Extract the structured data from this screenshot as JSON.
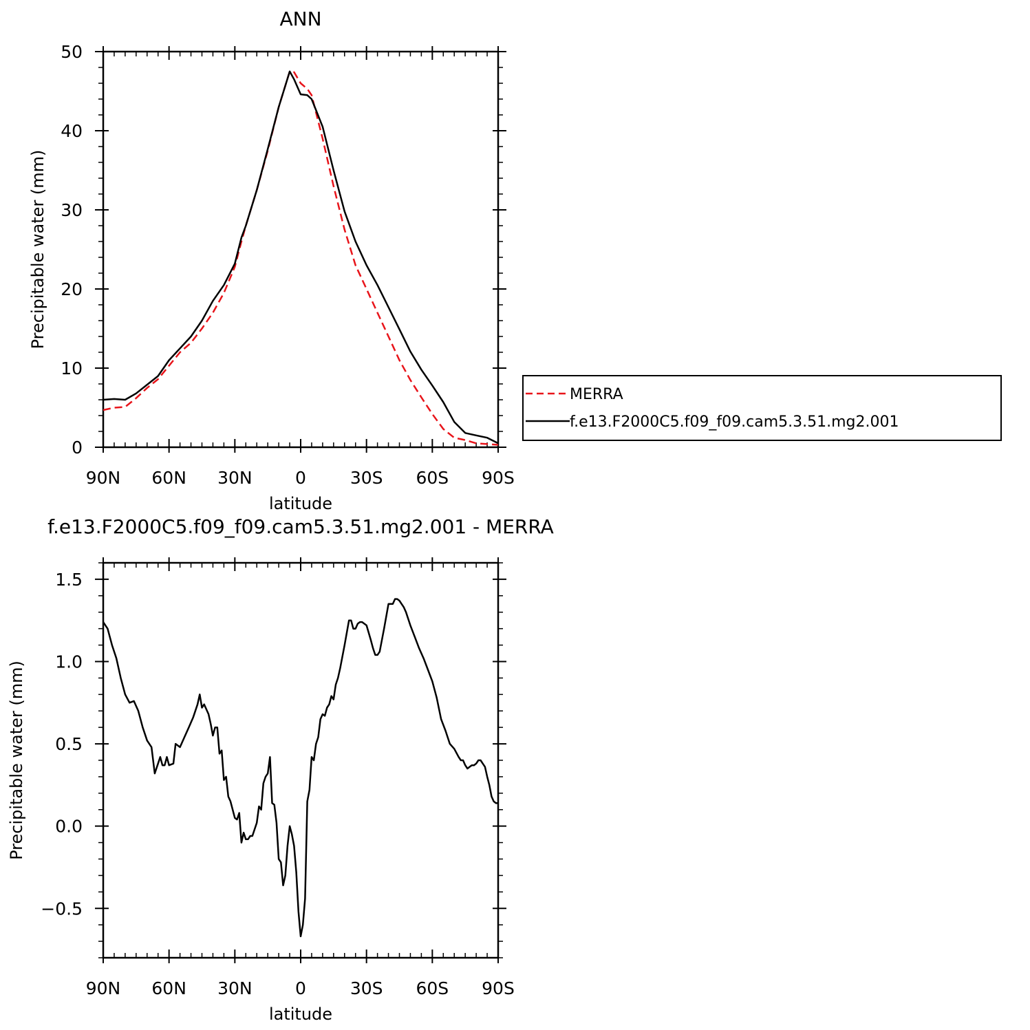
{
  "figure": {
    "top_title": "ANN",
    "bottom_title": "f.e13.F2000C5.f09_f09.cam5.3.51.mg2.001 - MERRA"
  },
  "colors": {
    "merra": "#e8141a",
    "model": "#000000",
    "frame": "#000000"
  },
  "legend": {
    "merra_label": "MERRA",
    "model_label": "f.e13.F2000C5.f09_f09.cam5.3.51.mg2.001"
  },
  "chart_data": [
    {
      "type": "line",
      "title": "ANN",
      "xlabel": "latitude",
      "ylabel": "Precipitable water (mm)",
      "xlim": [
        90,
        -90
      ],
      "ylim": [
        0,
        50
      ],
      "xticks": [
        90,
        60,
        30,
        0,
        -30,
        -60,
        -90
      ],
      "xtick_labels": [
        "90N",
        "60N",
        "30N",
        "0",
        "30S",
        "60S",
        "90S"
      ],
      "yticks": [
        0,
        10,
        20,
        30,
        40,
        50
      ],
      "ytick_labels": [
        "0",
        "10",
        "20",
        "30",
        "40",
        "50"
      ],
      "legend_position": "right",
      "series": [
        {
          "name": "MERRA",
          "style": "dashed",
          "color": "#e8141a",
          "x": [
            90,
            85,
            80,
            75,
            70,
            65,
            60,
            55,
            50,
            45,
            40,
            35,
            30,
            27,
            25,
            20,
            15,
            10,
            5,
            3,
            0,
            -3,
            -5,
            -10,
            -15,
            -20,
            -25,
            -30,
            -35,
            -40,
            -45,
            -50,
            -55,
            -60,
            -65,
            -70,
            -75,
            -80,
            -85,
            -90
          ],
          "y": [
            4.7,
            5.0,
            5.1,
            6.2,
            7.5,
            8.6,
            10.3,
            12.0,
            13.2,
            15.0,
            17.0,
            19.5,
            22.8,
            26.0,
            28.0,
            32.5,
            37.5,
            43.0,
            47.5,
            47.4,
            46.0,
            45.3,
            44.5,
            39.0,
            33.0,
            27.5,
            23.0,
            20.0,
            17.0,
            14.0,
            11.0,
            8.5,
            6.3,
            4.2,
            2.3,
            1.2,
            0.9,
            0.5,
            0.4,
            0.3
          ]
        },
        {
          "name": "f.e13.F2000C5.f09_f09.cam5.3.51.mg2.001",
          "style": "solid",
          "color": "#000000",
          "x": [
            90,
            85,
            80,
            75,
            70,
            65,
            60,
            55,
            50,
            45,
            40,
            35,
            30,
            27,
            25,
            20,
            15,
            10,
            5,
            3,
            0,
            -3,
            -5,
            -10,
            -15,
            -20,
            -25,
            -30,
            -35,
            -40,
            -45,
            -50,
            -55,
            -60,
            -65,
            -70,
            -75,
            -80,
            -85,
            -90
          ],
          "y": [
            6.0,
            6.1,
            6.0,
            6.8,
            7.9,
            9.0,
            11.0,
            12.5,
            14.0,
            16.0,
            18.5,
            20.5,
            23.2,
            26.5,
            28.0,
            32.5,
            37.7,
            43.0,
            47.5,
            46.5,
            44.6,
            44.5,
            44.0,
            40.5,
            35.0,
            29.8,
            26.0,
            23.0,
            20.5,
            17.7,
            14.9,
            12.1,
            9.8,
            7.8,
            5.7,
            3.2,
            1.8,
            1.5,
            1.2,
            0.5
          ]
        }
      ]
    },
    {
      "type": "line",
      "title": "f.e13.F2000C5.f09_f09.cam5.3.51.mg2.001 - MERRA",
      "xlabel": "latitude",
      "ylabel": "Precipitable water (mm)",
      "xlim": [
        90,
        -90
      ],
      "ylim": [
        -0.8,
        1.6
      ],
      "xticks": [
        90,
        60,
        30,
        0,
        -30,
        -60,
        -90
      ],
      "xtick_labels": [
        "90N",
        "60N",
        "30N",
        "0",
        "30S",
        "60S",
        "90S"
      ],
      "yticks": [
        -0.5,
        0.0,
        0.5,
        1.0,
        1.5
      ],
      "ytick_labels": [
        "−0.5",
        "0.0",
        "0.5",
        "1.0",
        "1.5"
      ],
      "series": [
        {
          "style": "solid",
          "color": "#000000",
          "x": [
            90,
            88,
            86,
            84,
            82,
            80,
            78,
            76,
            74,
            72,
            70,
            68,
            66.5,
            65,
            64,
            63,
            62,
            61,
            60,
            58,
            57,
            55,
            53,
            51,
            49,
            47,
            46,
            45,
            44,
            42,
            41,
            40,
            39,
            38,
            37,
            36,
            35,
            34,
            33,
            32,
            30,
            29,
            28,
            27,
            26,
            25,
            24,
            23,
            22,
            20,
            19,
            18,
            17,
            16,
            15,
            14,
            13,
            12,
            11,
            10,
            9,
            8,
            7,
            6,
            5,
            4,
            3,
            2,
            1,
            0,
            -1,
            -2,
            -3,
            -4,
            -5,
            -6,
            -7,
            -8,
            -9,
            -10,
            -11,
            -12,
            -13,
            -14,
            -15,
            -16,
            -17,
            -18,
            -20,
            -22,
            -23,
            -24,
            -25,
            -26,
            -27,
            -28,
            -30,
            -32,
            -33,
            -34,
            -35,
            -36,
            -38,
            -40,
            -42,
            -43,
            -44,
            -45,
            -46,
            -47,
            -48,
            -50,
            -52,
            -54,
            -56,
            -58,
            -60,
            -62,
            -64,
            -66,
            -68,
            -70,
            -72,
            -73,
            -74,
            -75,
            -76,
            -77,
            -78,
            -79,
            -80,
            -81,
            -82,
            -83,
            -84,
            -85,
            -86,
            -87,
            -88,
            -89,
            -90
          ],
          "y": [
            1.24,
            1.2,
            1.1,
            1.02,
            0.9,
            0.8,
            0.75,
            0.76,
            0.7,
            0.6,
            0.52,
            0.48,
            0.32,
            0.38,
            0.42,
            0.37,
            0.37,
            0.42,
            0.37,
            0.38,
            0.5,
            0.48,
            0.54,
            0.6,
            0.66,
            0.74,
            0.8,
            0.72,
            0.74,
            0.68,
            0.62,
            0.55,
            0.6,
            0.6,
            0.44,
            0.46,
            0.28,
            0.3,
            0.18,
            0.15,
            0.05,
            0.04,
            0.08,
            -0.1,
            -0.04,
            -0.08,
            -0.08,
            -0.06,
            -0.06,
            0.02,
            0.12,
            0.1,
            0.26,
            0.3,
            0.32,
            0.42,
            0.14,
            0.13,
            0.02,
            -0.2,
            -0.22,
            -0.36,
            -0.3,
            -0.12,
            0.0,
            -0.05,
            -0.12,
            -0.28,
            -0.52,
            -0.67,
            -0.6,
            -0.44,
            0.15,
            0.22,
            0.42,
            0.4,
            0.5,
            0.54,
            0.65,
            0.68,
            0.67,
            0.72,
            0.74,
            0.79,
            0.77,
            0.86,
            0.9,
            0.96,
            1.1,
            1.25,
            1.25,
            1.2,
            1.2,
            1.23,
            1.24,
            1.24,
            1.22,
            1.13,
            1.08,
            1.04,
            1.04,
            1.06,
            1.2,
            1.35,
            1.35,
            1.38,
            1.38,
            1.37,
            1.35,
            1.33,
            1.3,
            1.22,
            1.15,
            1.08,
            1.02,
            0.95,
            0.88,
            0.78,
            0.65,
            0.58,
            0.5,
            0.47,
            0.42,
            0.4,
            0.4,
            0.37,
            0.35,
            0.36,
            0.37,
            0.37,
            0.38,
            0.4,
            0.4,
            0.38,
            0.36,
            0.3,
            0.25,
            0.18,
            0.15,
            0.14,
            0.14
          ]
        }
      ]
    }
  ]
}
